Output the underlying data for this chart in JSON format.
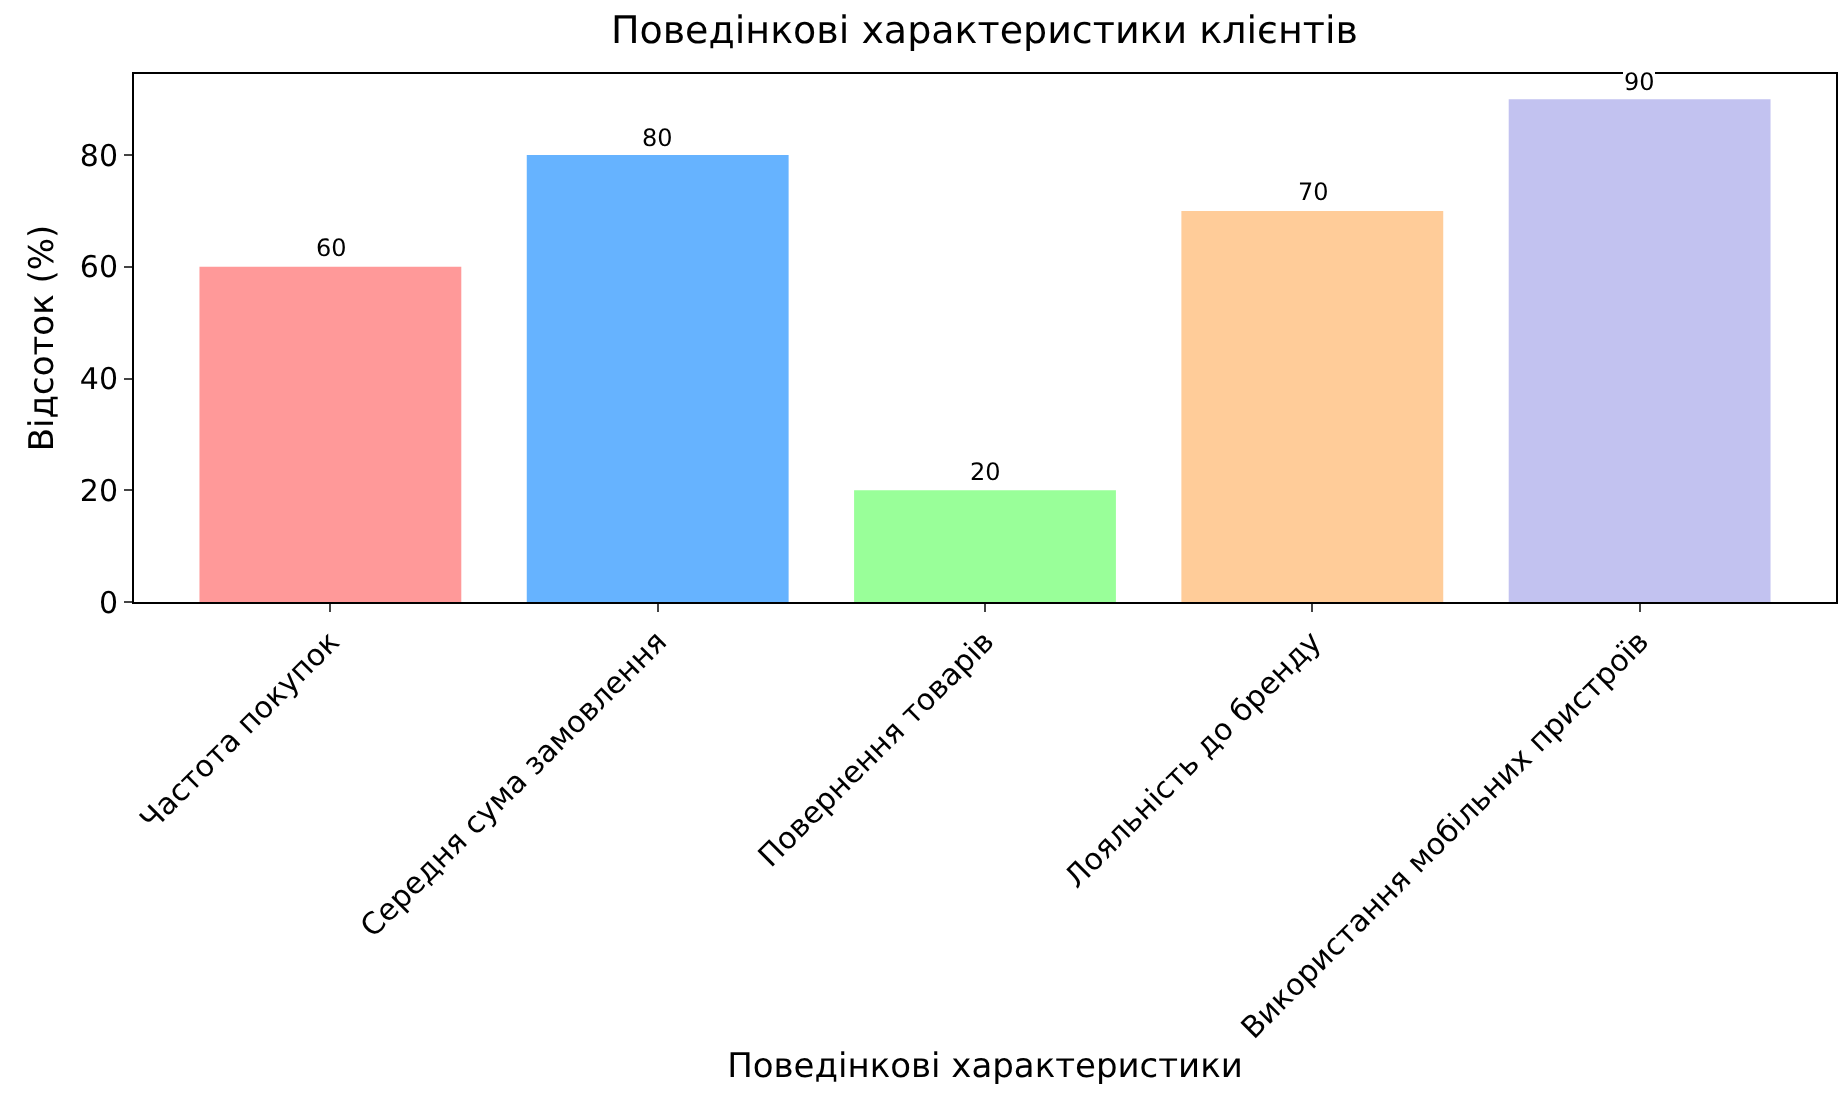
{
  "chart_data": {
    "type": "bar",
    "title": "Поведінкові характеристики клієнтів",
    "xlabel": "Поведінкові характеристики",
    "ylabel": "Відсоток (%)",
    "categories": [
      "Частота покупок",
      "Середня сума замовлення",
      "Повернення товарів",
      "Лояльність до бренду",
      "Використання мобільних пристроїв"
    ],
    "values": [
      60,
      80,
      20,
      70,
      90
    ],
    "colors": [
      "#ff9999",
      "#66b3ff",
      "#99ff99",
      "#ffcc99",
      "#c2c2f0"
    ],
    "ylim": [
      0,
      94.5
    ],
    "yticks": [
      0,
      20,
      40,
      60,
      80
    ],
    "grid": false,
    "data_labels": true
  }
}
